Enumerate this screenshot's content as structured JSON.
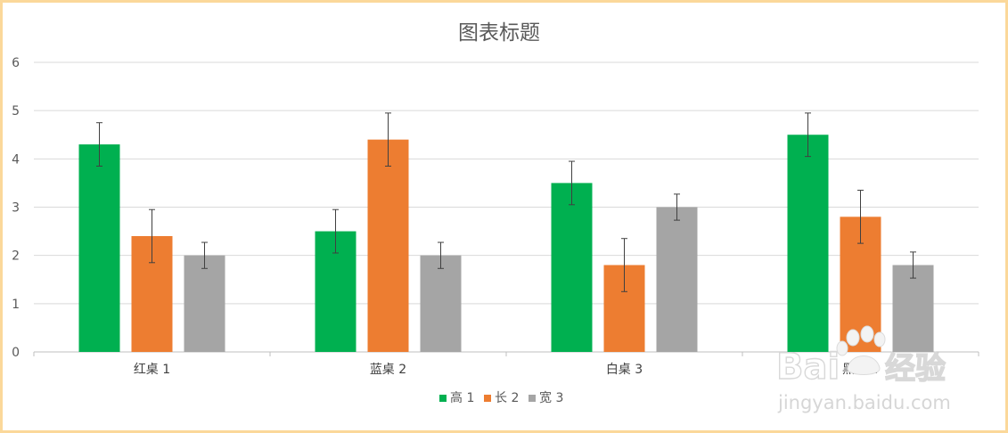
{
  "chart_data": {
    "type": "bar",
    "title": "图表标题",
    "xlabel": "",
    "ylabel": "",
    "categories": [
      "红桌 1",
      "蓝桌 2",
      "白桌 3",
      "黑桌 4"
    ],
    "series": [
      {
        "name": "高 1",
        "color": "#00b050",
        "values": [
          4.3,
          2.5,
          3.5,
          4.5
        ],
        "errors": [
          0.45,
          0.45,
          0.45,
          0.45
        ]
      },
      {
        "name": "长 2",
        "color": "#ed7d31",
        "values": [
          2.4,
          4.4,
          1.8,
          2.8
        ],
        "errors": [
          0.55,
          0.55,
          0.55,
          0.55
        ]
      },
      {
        "name": "宽 3",
        "color": "#a5a5a5",
        "values": [
          2.0,
          2.0,
          3.0,
          1.8
        ],
        "errors": [
          0.27,
          0.27,
          0.27,
          0.27
        ]
      }
    ],
    "ylim": [
      0,
      6
    ],
    "yticks": [
      0,
      1,
      2,
      3,
      4,
      5,
      6
    ],
    "grid": true,
    "legend_position": "bottom"
  },
  "watermark": {
    "brand": "Bai",
    "brand_suffix": "经验",
    "url": "jingyan.baidu.com"
  }
}
